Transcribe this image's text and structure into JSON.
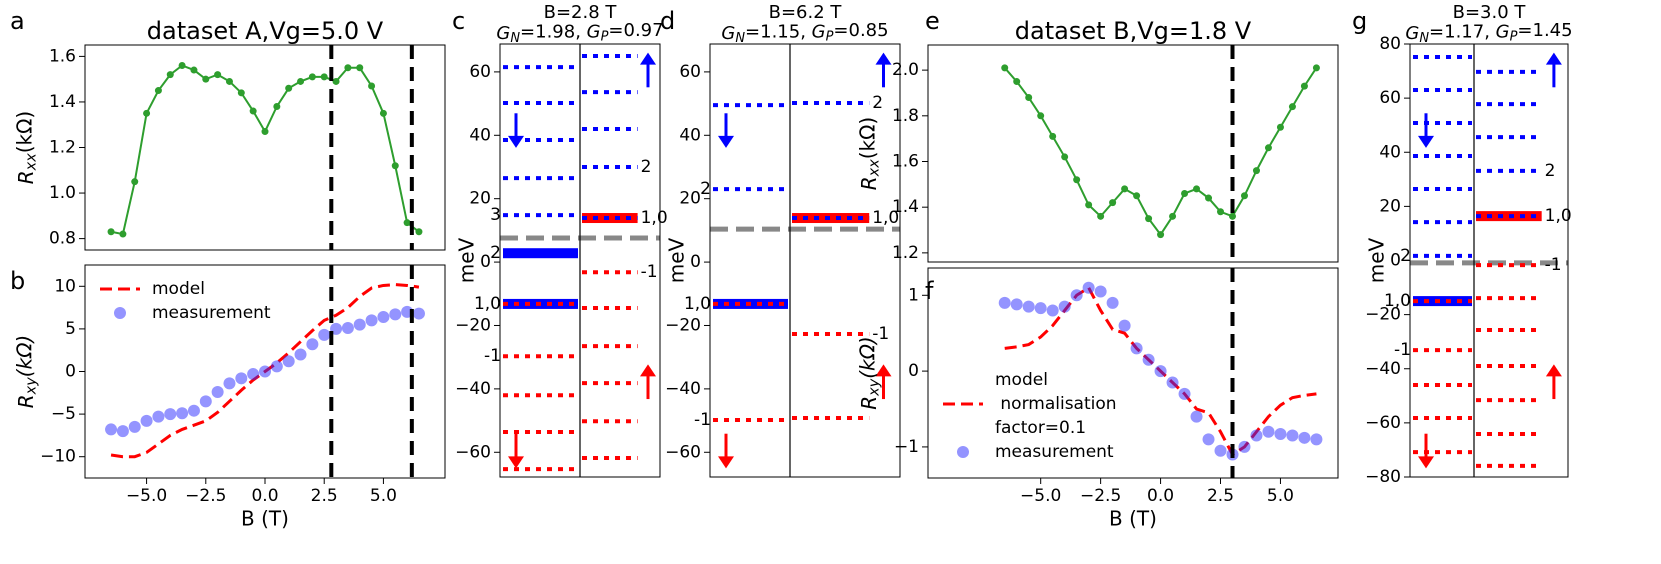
{
  "chart_data": [
    {
      "type": "line",
      "panel": "a",
      "title": "dataset A,Vg=5.0 V",
      "ylabel": [
        {
          "t": "R",
          "italic": true
        },
        {
          "t": "xx",
          "sub": true,
          "italic": true
        },
        {
          "t": "(kΩ)"
        }
      ],
      "x": [
        -6.5,
        -6,
        -5.5,
        -5,
        -4.5,
        -4,
        -3.5,
        -3,
        -2.5,
        -2,
        -1.5,
        -1,
        -0.5,
        0,
        0.5,
        1,
        1.5,
        2,
        2.5,
        3,
        3.5,
        4,
        4.5,
        5,
        5.5,
        6,
        6.5
      ],
      "series": [
        {
          "color": "#2e9e2e",
          "style": "line-markers",
          "values": [
            0.83,
            0.82,
            1.05,
            1.35,
            1.45,
            1.52,
            1.56,
            1.54,
            1.5,
            1.52,
            1.49,
            1.44,
            1.36,
            1.27,
            1.38,
            1.46,
            1.49,
            1.51,
            1.51,
            1.49,
            1.55,
            1.55,
            1.47,
            1.35,
            1.12,
            0.87,
            0.83
          ]
        }
      ],
      "xlim": [
        -7.6,
        7.6
      ],
      "ylim": [
        0.75,
        1.65
      ],
      "yticks": [
        0.8,
        {
          "value": 1,
          "label": "1.0"
        },
        1.2,
        1.4,
        1.6
      ],
      "vlines": [
        2.8,
        6.2
      ]
    },
    {
      "type": "line",
      "panel": "b",
      "xlabel": "B (T)",
      "ylabel": [
        {
          "t": "R",
          "italic": true
        },
        {
          "t": "xy",
          "sub": true,
          "italic": true
        },
        {
          "t": "(kΩ)",
          "italic": true
        }
      ],
      "x": [
        -6.5,
        -6,
        -5.5,
        -5,
        -4.5,
        -4,
        -3.5,
        -3,
        -2.5,
        -2,
        -1.5,
        -1,
        -0.5,
        0,
        0.5,
        1,
        1.5,
        2,
        2.5,
        3,
        3.5,
        4,
        4.5,
        5,
        5.5,
        6,
        6.5
      ],
      "series": [
        {
          "name": "model",
          "color": "#ff0000",
          "style": "dashed",
          "values": [
            -9.8,
            -10,
            -10,
            -9.5,
            -8.5,
            -7.5,
            -6.8,
            -6.3,
            -5.8,
            -4.8,
            -3.5,
            -2.2,
            -1,
            0,
            1,
            2.2,
            3.5,
            4.8,
            6,
            6.6,
            7.5,
            8.8,
            9.8,
            10.1,
            10.2,
            10.1,
            9.9
          ]
        },
        {
          "name": "measurement",
          "color": "#2a2aff",
          "style": "markers",
          "values": [
            -6.8,
            -7,
            -6.5,
            -5.8,
            -5.3,
            -5,
            -4.9,
            -4.6,
            -3.5,
            -2.4,
            -1.4,
            -0.8,
            -0.3,
            0,
            0.6,
            1.2,
            2,
            3.2,
            4.3,
            5,
            5.1,
            5.5,
            6,
            6.4,
            6.7,
            7,
            6.8
          ]
        }
      ],
      "legend": "upper left",
      "xlim": [
        -7.6,
        7.6
      ],
      "ylim": [
        -12.5,
        12.5
      ],
      "xticks": [
        {
          "value": -5,
          "label": "−5.0"
        },
        {
          "value": -2.5,
          "label": "−2.5"
        },
        {
          "value": 0,
          "label": "0.0"
        },
        2.5,
        {
          "value": 5,
          "label": "5.0"
        }
      ],
      "yticks": [
        {
          "value": -10,
          "label": "−10"
        },
        {
          "value": -5,
          "label": "−5"
        },
        0,
        5,
        10
      ],
      "vlines": [
        2.8,
        6.2
      ]
    },
    {
      "type": "levels",
      "panel": "c",
      "title": "B=2.8 T",
      "subtitle": [
        {
          "t": "G",
          "italic": true
        },
        {
          "t": "N",
          "sub": true,
          "italic": true
        },
        {
          "t": "=1.98, "
        },
        {
          "t": "G",
          "italic": true
        },
        {
          "t": "P",
          "sub": true,
          "italic": true
        },
        {
          "t": "=0.97"
        }
      ],
      "ylabel": "meV",
      "ylim": [
        -67.8,
        68.8
      ],
      "yticks": [
        {
          "value": -60,
          "label": "−60"
        },
        {
          "value": -40,
          "label": "−40"
        },
        {
          "value": -20,
          "label": "−20"
        },
        0,
        20,
        40,
        60
      ],
      "fermi": 7.6,
      "fermi_color": "#888888",
      "columns": [
        {
          "levels": [
            {
              "value": 61.5,
              "color": "#0000ff"
            },
            {
              "value": 50.2,
              "color": "#0000ff"
            },
            {
              "value": 38.5,
              "color": "#0000ff"
            },
            {
              "value": 26.5,
              "color": "#0000ff"
            },
            {
              "value": 14.8,
              "color": "#0000ff",
              "label": "3"
            },
            {
              "value": 2.8,
              "color": "#0000ff",
              "fill": "#0000ff",
              "label": "2"
            },
            {
              "value": -13.2,
              "color": "#ff0000",
              "fill": "#0000ff",
              "label": "1,0"
            },
            {
              "value": -29.7,
              "color": "#ff0000",
              "label": "-1"
            },
            {
              "value": -42,
              "color": "#ff0000"
            },
            {
              "value": -53.6,
              "color": "#ff0000"
            },
            {
              "value": -65.3,
              "color": "#ff0000"
            }
          ]
        },
        {
          "levels": [
            {
              "value": 65,
              "color": "#0000ff"
            },
            {
              "value": 53.6,
              "color": "#0000ff"
            },
            {
              "value": 42,
              "color": "#0000ff"
            },
            {
              "value": 30,
              "color": "#0000ff",
              "label": "2"
            },
            {
              "value": 13.9,
              "color": "#0000ff",
              "fill": "#ff0000",
              "label": "1,0"
            },
            {
              "value": -3.2,
              "color": "#ff0000",
              "label": "-1"
            },
            {
              "value": -14.5,
              "color": "#ff0000"
            },
            {
              "value": -26.5,
              "color": "#ff0000"
            },
            {
              "value": -38.2,
              "color": "#ff0000"
            },
            {
              "value": -50.2,
              "color": "#ff0000"
            },
            {
              "value": -61.8,
              "color": "#ff0000"
            }
          ]
        }
      ]
    },
    {
      "type": "levels",
      "panel": "d",
      "title": "B=6.2 T",
      "subtitle": [
        {
          "t": "G",
          "italic": true
        },
        {
          "t": "N",
          "sub": true,
          "italic": true
        },
        {
          "t": "=1.15, "
        },
        {
          "t": "G",
          "italic": true
        },
        {
          "t": "P",
          "sub": true,
          "italic": true
        },
        {
          "t": "=0.85"
        }
      ],
      "ylabel": "meV",
      "ylim": [
        -67.8,
        68.8
      ],
      "yticks": [
        {
          "value": -60,
          "label": "−60"
        },
        {
          "value": -40,
          "label": "−40"
        },
        {
          "value": -20,
          "label": "−20"
        },
        0,
        20,
        40,
        60
      ],
      "fermi": 10.4,
      "fermi_color": "#888888",
      "columns": [
        {
          "levels": [
            {
              "value": 49.5,
              "color": "#0000ff"
            },
            {
              "value": 23,
              "color": "#0000ff",
              "label": "2"
            },
            {
              "value": -13.2,
              "color": "#ff0000",
              "fill": "#0000ff",
              "label": "1,0"
            },
            {
              "value": -49.8,
              "color": "#ff0000",
              "label": "-1"
            }
          ]
        },
        {
          "levels": [
            {
              "value": 50.2,
              "color": "#0000ff",
              "label": "2"
            },
            {
              "value": 13.9,
              "color": "#0000ff",
              "fill": "#ff0000",
              "label": "1,0"
            },
            {
              "value": -22.7,
              "color": "#ff0000",
              "label": "-1"
            },
            {
              "value": -49.2,
              "color": "#ff0000"
            }
          ]
        }
      ]
    },
    {
      "type": "line",
      "panel": "e",
      "title": "dataset B,Vg=1.8 V",
      "ylabel": [
        {
          "t": "R",
          "italic": true
        },
        {
          "t": "xx",
          "sub": true,
          "italic": true
        },
        {
          "t": "(kΩ)"
        }
      ],
      "x": [
        -6.5,
        -6,
        -5.5,
        -5,
        -4.5,
        -4,
        -3.5,
        -3,
        -2.5,
        -2,
        -1.5,
        -1,
        -0.5,
        0,
        0.5,
        1,
        1.5,
        2,
        2.5,
        3,
        3.5,
        4,
        4.5,
        5,
        5.5,
        6,
        6.5
      ],
      "series": [
        {
          "color": "#2e9e2e",
          "style": "line-markers",
          "values": [
            2.01,
            1.95,
            1.88,
            1.8,
            1.71,
            1.62,
            1.52,
            1.41,
            1.36,
            1.42,
            1.48,
            1.45,
            1.35,
            1.28,
            1.36,
            1.46,
            1.48,
            1.44,
            1.38,
            1.36,
            1.45,
            1.56,
            1.66,
            1.75,
            1.84,
            1.93,
            2.01
          ]
        }
      ],
      "xlim": [
        -9.7,
        7.4
      ],
      "ylim": [
        1.16,
        2.11
      ],
      "yticks": [
        1.2,
        1.4,
        1.6,
        1.8,
        {
          "value": 2,
          "label": "2.0"
        }
      ],
      "vlines": [
        3.0
      ]
    },
    {
      "type": "line",
      "panel": "f",
      "xlabel": "B (T)",
      "ylabel": [
        {
          "t": "R",
          "italic": true
        },
        {
          "t": "xy",
          "sub": true,
          "italic": true
        },
        {
          "t": "(kΩ)",
          "italic": true
        }
      ],
      "x": [
        -6.5,
        -6,
        -5.5,
        -5,
        -4.5,
        -4,
        -3.5,
        -3,
        -2.5,
        -2,
        -1.5,
        -1,
        -0.5,
        0,
        0.5,
        1,
        1.5,
        2,
        2.5,
        3,
        3.5,
        4,
        4.5,
        5,
        5.5,
        6,
        6.5
      ],
      "series": [
        {
          "name": [
            "model",
            " normalisation",
            "factor=0.1"
          ],
          "color": "#ff0000",
          "style": "dashed",
          "values": [
            0.3,
            0.32,
            0.35,
            0.45,
            0.6,
            0.8,
            1.0,
            1.1,
            0.8,
            0.55,
            0.5,
            0.3,
            0.15,
            0,
            -0.15,
            -0.3,
            -0.5,
            -0.55,
            -0.8,
            -1.1,
            -1.0,
            -0.8,
            -0.6,
            -0.45,
            -0.35,
            -0.32,
            -0.3
          ]
        },
        {
          "name": "measurement",
          "color": "#2a2aff",
          "style": "markers",
          "values": [
            0.9,
            0.88,
            0.85,
            0.83,
            0.8,
            0.85,
            1.0,
            1.1,
            1.05,
            0.9,
            0.6,
            0.3,
            0.15,
            0,
            -0.15,
            -0.3,
            -0.6,
            -0.9,
            -1.05,
            -1.1,
            -1.0,
            -0.85,
            -0.8,
            -0.83,
            -0.85,
            -0.88,
            -0.9
          ]
        }
      ],
      "legend": "lower left",
      "xlim": [
        -9.7,
        7.4
      ],
      "ylim": [
        -1.41,
        1.36
      ],
      "xticks": [
        {
          "value": -5,
          "label": "−5.0"
        },
        {
          "value": -2.5,
          "label": "−2.5"
        },
        {
          "value": 0,
          "label": "0.0"
        },
        2.5,
        {
          "value": 5,
          "label": "5.0"
        }
      ],
      "yticks": [
        {
          "value": -1,
          "label": "−1"
        },
        0,
        1
      ],
      "vlines": [
        3.0
      ]
    },
    {
      "type": "levels",
      "panel": "g",
      "title": "B=3.0 T",
      "subtitle": [
        {
          "t": "G",
          "italic": true
        },
        {
          "t": "N",
          "sub": true,
          "italic": true
        },
        {
          "t": "=1.17, "
        },
        {
          "t": "G",
          "italic": true
        },
        {
          "t": "P",
          "sub": true,
          "italic": true
        },
        {
          "t": "=1.45"
        }
      ],
      "ylabel": "meV",
      "ylim": [
        -80,
        80
      ],
      "yticks": [
        {
          "value": -80,
          "label": "−80"
        },
        {
          "value": -60,
          "label": "−60"
        },
        {
          "value": -40,
          "label": "−40"
        },
        {
          "value": -20,
          "label": "−20"
        },
        0,
        20,
        40,
        60,
        80
      ],
      "fermi": -0.9,
      "fermi_color": "#888888",
      "columns": [
        {
          "levels": [
            {
              "value": 75.2,
              "color": "#0000ff"
            },
            {
              "value": 63,
              "color": "#0000ff"
            },
            {
              "value": 50.8,
              "color": "#0000ff"
            },
            {
              "value": 38.6,
              "color": "#0000ff"
            },
            {
              "value": 26.4,
              "color": "#0000ff"
            },
            {
              "value": 14.2,
              "color": "#0000ff"
            },
            {
              "value": 1.7,
              "color": "#0000ff",
              "label": "2"
            },
            {
              "value": -15,
              "color": "#ff0000",
              "fill": "#0000ff",
              "label": "1,0"
            },
            {
              "value": -33.1,
              "color": "#ff0000",
              "label": "-1"
            },
            {
              "value": -46,
              "color": "#ff0000"
            },
            {
              "value": -58.2,
              "color": "#ff0000"
            },
            {
              "value": -70.8,
              "color": "#ff0000"
            }
          ]
        },
        {
          "levels": [
            {
              "value": 69.7,
              "color": "#0000ff"
            },
            {
              "value": 57.8,
              "color": "#0000ff"
            },
            {
              "value": 45.6,
              "color": "#0000ff"
            },
            {
              "value": 33.1,
              "color": "#0000ff",
              "label": "2"
            },
            {
              "value": 16.4,
              "color": "#0000ff",
              "fill": "#ff0000",
              "label": "1,0"
            },
            {
              "value": -1.7,
              "color": "#ff0000",
              "label": "-1"
            },
            {
              "value": -13.9,
              "color": "#ff0000"
            },
            {
              "value": -25.7,
              "color": "#ff0000"
            },
            {
              "value": -39,
              "color": "#ff0000"
            },
            {
              "value": -51.6,
              "color": "#ff0000"
            },
            {
              "value": -64.1,
              "color": "#ff0000"
            },
            {
              "value": -75.9,
              "color": "#ff0000"
            }
          ]
        }
      ]
    }
  ]
}
